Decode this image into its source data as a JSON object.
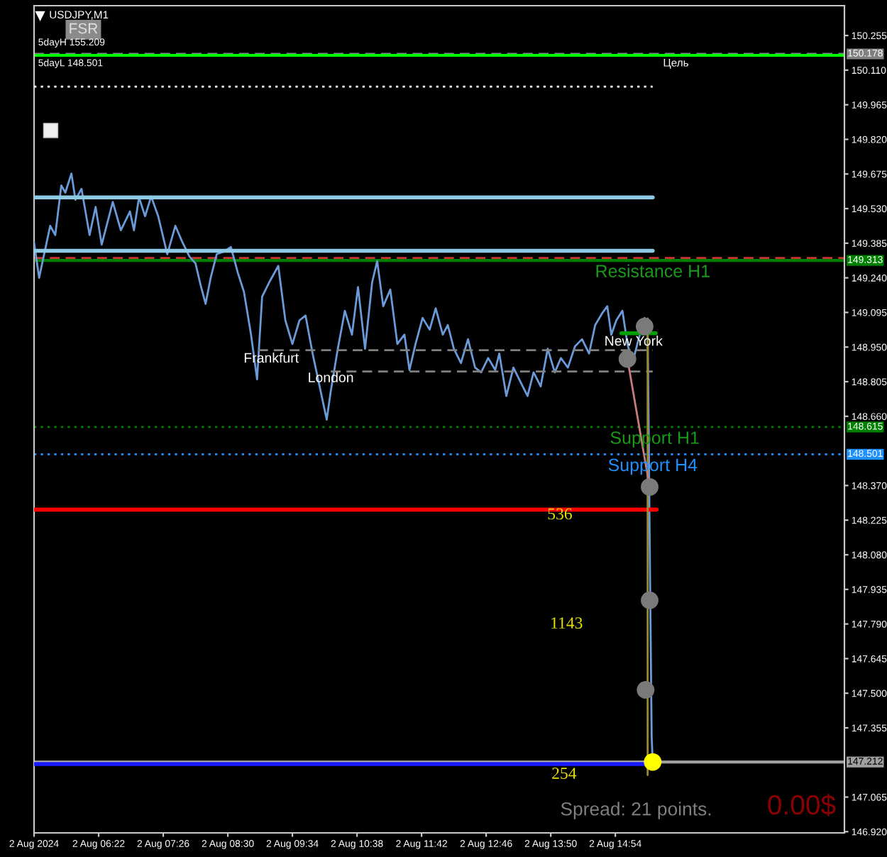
{
  "chart_data": {
    "type": "line",
    "title": "USDJPY,M1",
    "xlim": [
      "2024-08-02T05:18",
      "2024-08-02T18:41"
    ],
    "xticks": [
      {
        "value": "2024-08-02T05:18",
        "label": "2 Aug 2024"
      },
      {
        "value": "2024-08-02T06:22",
        "label": "2 Aug 06:22"
      },
      {
        "value": "2024-08-02T07:26",
        "label": "2 Aug 07:26"
      },
      {
        "value": "2024-08-02T08:30",
        "label": "2 Aug 08:30"
      },
      {
        "value": "2024-08-02T09:34",
        "label": "2 Aug 09:34"
      },
      {
        "value": "2024-08-02T10:38",
        "label": "2 Aug 10:38"
      },
      {
        "value": "2024-08-02T11:42",
        "label": "2 Aug 11:42"
      },
      {
        "value": "2024-08-02T12:46",
        "label": "2 Aug 12:46"
      },
      {
        "value": "2024-08-02T13:50",
        "label": "2 Aug 13:50"
      },
      {
        "value": "2024-08-02T14:54",
        "label": "2 Aug 14:54"
      }
    ],
    "ylim": [
      146.915,
      150.38
    ],
    "yticks": [
      150.255,
      {
        "value": 150.11,
        "label": "150.110"
      },
      149.965,
      {
        "value": 149.82,
        "label": "149.820"
      },
      149.675,
      {
        "value": 149.53,
        "label": "149.530"
      },
      149.385,
      {
        "value": 149.24,
        "label": "149.240"
      },
      149.095,
      {
        "value": 148.95,
        "label": "148.950"
      },
      148.805,
      {
        "value": 148.66,
        "label": "148.660"
      },
      {
        "value": 148.37,
        "label": "148.370"
      },
      148.225,
      {
        "value": 148.08,
        "label": "148.080"
      },
      147.935,
      {
        "value": 147.79,
        "label": "147.790"
      },
      147.645,
      {
        "value": 147.5,
        "label": "147.500"
      },
      147.355,
      147.065,
      {
        "value": 146.92,
        "label": "146.920"
      }
    ],
    "series": [
      {
        "color": "#6a9ad8",
        "x": [
          "2024-08-02T05:18",
          "2024-08-02T05:23",
          "2024-08-02T05:30",
          "2024-08-02T05:34",
          "2024-08-02T05:39",
          "2024-08-02T05:45",
          "2024-08-02T05:49",
          "2024-08-02T05:55",
          "2024-08-02T05:59",
          "2024-08-02T06:05",
          "2024-08-02T06:13",
          "2024-08-02T06:19",
          "2024-08-02T06:25",
          "2024-08-02T06:36",
          "2024-08-02T06:44",
          "2024-08-02T06:53",
          "2024-08-02T06:57",
          "2024-08-02T07:02",
          "2024-08-02T07:08",
          "2024-08-02T07:14",
          "2024-08-02T07:21",
          "2024-08-02T07:30",
          "2024-08-02T07:38",
          "2024-08-02T07:45",
          "2024-08-02T07:52",
          "2024-08-02T07:58",
          "2024-08-02T08:03",
          "2024-08-02T08:08",
          "2024-08-02T08:13",
          "2024-08-02T08:19",
          "2024-08-02T08:26",
          "2024-08-02T08:33",
          "2024-08-02T08:40",
          "2024-08-02T08:46",
          "2024-08-02T08:53",
          "2024-08-02T08:59",
          "2024-08-02T09:04",
          "2024-08-02T09:11",
          "2024-08-02T09:20",
          "2024-08-02T09:27",
          "2024-08-02T09:34",
          "2024-08-02T09:41",
          "2024-08-02T09:47",
          "2024-08-02T09:54",
          "2024-08-02T10:03",
          "2024-08-02T10:08",
          "2024-08-02T10:12",
          "2024-08-02T10:19",
          "2024-08-02T10:26",
          "2024-08-02T10:33",
          "2024-08-02T10:39",
          "2024-08-02T10:46",
          "2024-08-02T10:53",
          "2024-08-02T10:58",
          "2024-08-02T11:04",
          "2024-08-02T11:11",
          "2024-08-02T11:18",
          "2024-08-02T11:25",
          "2024-08-02T11:30",
          "2024-08-02T11:36",
          "2024-08-02T11:43",
          "2024-08-02T11:50",
          "2024-08-02T11:56",
          "2024-08-02T12:03",
          "2024-08-02T12:08",
          "2024-08-02T12:14",
          "2024-08-02T12:21",
          "2024-08-02T12:28",
          "2024-08-02T12:35",
          "2024-08-02T12:41",
          "2024-08-02T12:48",
          "2024-08-02T12:55",
          "2024-08-02T12:59",
          "2024-08-02T13:06",
          "2024-08-02T13:13",
          "2024-08-02T13:20",
          "2024-08-02T13:27",
          "2024-08-02T13:33",
          "2024-08-02T13:40",
          "2024-08-02T13:47",
          "2024-08-02T13:54",
          "2024-08-02T14:00",
          "2024-08-02T14:07",
          "2024-08-02T14:14",
          "2024-08-02T14:21",
          "2024-08-02T14:28",
          "2024-08-02T14:34",
          "2024-08-02T14:41",
          "2024-08-02T14:46",
          "2024-08-02T14:50",
          "2024-08-02T14:55",
          "2024-08-02T15:01",
          "2024-08-02T15:06",
          "2024-08-02T15:11",
          "2024-08-02T15:17",
          "2024-08-02T15:23",
          "2024-08-02T15:26",
          "2024-08-02T15:27",
          "2024-08-02T15:28",
          "2024-08-02T15:29",
          "2024-08-02T15:30",
          "2024-08-02T15:31"
        ],
        "values": [
          149.389,
          149.24,
          149.379,
          149.458,
          149.419,
          149.627,
          149.597,
          149.677,
          149.567,
          149.613,
          149.419,
          149.537,
          149.379,
          149.558,
          149.439,
          149.518,
          149.439,
          149.577,
          149.498,
          149.581,
          149.498,
          149.339,
          149.458,
          149.389,
          149.329,
          149.3,
          149.21,
          149.131,
          149.24,
          149.339,
          149.35,
          149.369,
          149.26,
          149.181,
          149.002,
          148.815,
          149.161,
          149.221,
          149.29,
          149.062,
          148.963,
          149.062,
          149.082,
          148.923,
          148.745,
          148.646,
          148.765,
          148.943,
          149.102,
          149.002,
          149.201,
          148.943,
          149.221,
          149.31,
          149.121,
          149.191,
          148.963,
          149.002,
          148.854,
          148.963,
          149.072,
          149.023,
          149.112,
          149.002,
          149.042,
          148.943,
          148.883,
          148.983,
          148.864,
          148.844,
          148.904,
          148.854,
          148.923,
          148.745,
          148.864,
          148.804,
          148.745,
          148.844,
          148.785,
          148.943,
          148.844,
          148.904,
          148.864,
          148.953,
          148.983,
          148.923,
          149.042,
          149.092,
          149.121,
          149.002,
          149.062,
          149.102,
          148.963,
          148.883,
          148.983,
          149.072,
          149.023,
          148.626,
          148.15,
          147.734,
          147.318,
          147.212
        ]
      },
      {
        "color": "#ffffff",
        "line_style": "dotted",
        "x": [
          "2024-08-02T05:18",
          "2024-08-02T15:31"
        ],
        "values": [
          150.041,
          150.041
        ]
      },
      {
        "color": "#8ecae6",
        "x": [
          "2024-08-02T05:18",
          "2024-08-02T15:31"
        ],
        "values": [
          149.577,
          149.577
        ]
      },
      {
        "color": "#8ecae6",
        "x": [
          "2024-08-02T05:18",
          "2024-08-02T15:31"
        ],
        "values": [
          149.353,
          149.353
        ]
      },
      {
        "color": "#808080",
        "line_style": "dashed",
        "x": [
          "2024-08-02T09:00",
          "2024-08-02T15:31"
        ],
        "values": [
          148.937,
          148.937
        ]
      },
      {
        "color": "#808080",
        "line_style": "dashed",
        "x": [
          "2024-08-02T10:12",
          "2024-08-02T15:31"
        ],
        "values": [
          148.848,
          148.848
        ]
      },
      {
        "color": "#ff0000",
        "x": [
          "2024-08-02T05:18",
          "2024-08-02T15:35"
        ],
        "values": [
          148.269,
          148.269
        ]
      },
      {
        "color": "#1a1aff",
        "x": [
          "2024-08-02T05:18",
          "2024-08-02T15:31"
        ],
        "values": [
          147.203,
          147.203
        ]
      },
      {
        "color": "#00a000",
        "x": [
          "2024-08-02T15:00",
          "2024-08-02T15:34"
        ],
        "values": [
          149.008,
          149.008
        ]
      },
      {
        "color": "#9a8a30",
        "x": [
          "2024-08-02T15:26",
          "2024-08-02T15:26"
        ],
        "values": [
          149.07,
          147.157
        ]
      },
      {
        "color": "#c87c7c",
        "x": [
          "2024-08-02T15:06",
          "2024-08-02T15:28"
        ],
        "values": [
          148.9,
          148.364
        ]
      },
      {
        "type": "scatter",
        "color": "#7a7a7a",
        "marker": "circle",
        "x": [
          "2024-08-02T15:23",
          "2024-08-02T15:06",
          "2024-08-02T15:28",
          "2024-08-02T15:28",
          "2024-08-02T15:24"
        ],
        "values": [
          149.036,
          148.9,
          148.364,
          147.889,
          147.514
        ]
      },
      {
        "type": "scatter",
        "color": "#ffff00",
        "marker": "circle",
        "x": [
          "2024-08-02T15:31"
        ],
        "values": [
          147.212
        ]
      }
    ],
    "ref_lines": [
      {
        "axis": "y",
        "value": 150.178,
        "label": "150.178",
        "color": "#808080",
        "line_style": "dashed"
      },
      {
        "axis": "y",
        "value": 150.172,
        "label": null,
        "color": "#00ff00",
        "line_style": "solid"
      },
      {
        "axis": "y",
        "value": 149.323,
        "label": null,
        "color": "#cc3333",
        "line_style": "dashed"
      },
      {
        "axis": "y",
        "value": 149.313,
        "label": "149.313",
        "color": "#008000",
        "line_style": "solid"
      },
      {
        "axis": "y",
        "value": 148.615,
        "label": "148.615",
        "color": "#008000",
        "line_style": "dotted"
      },
      {
        "axis": "y",
        "value": 148.501,
        "label": "148.501",
        "color": "#1e90ff",
        "line_style": "dotted"
      },
      {
        "axis": "y",
        "value": 147.212,
        "label": "147.212",
        "color": "#a0a0a0",
        "line_style": "solid"
      }
    ],
    "annotations": [
      "FSR",
      "5dayH 155.209",
      "5dayL 148.501",
      "Spread: 21 points.",
      "0.00$",
      {
        "text": "Цель",
        "x": "2024-08-02T15:54",
        "y": 150.172
      },
      {
        "text": "Resistance H1",
        "x": "2024-08-02T15:31",
        "y": 149.313
      },
      {
        "text": "Support H1",
        "x": "2024-08-02T15:33",
        "y": 148.615
      },
      {
        "text": "Support H4",
        "x": "2024-08-02T15:31",
        "y": 148.501
      },
      {
        "text": "Frankfurt",
        "x": "2024-08-02T09:13",
        "y": 148.937
      },
      {
        "text": "London",
        "x": "2024-08-02T10:12",
        "y": 148.818
      },
      {
        "text": "New York",
        "x": "2024-08-02T15:12",
        "y": 148.971
      },
      {
        "text": "536",
        "x": "2024-08-02T13:59",
        "y": 148.245
      },
      "1143",
      "254"
    ]
  }
}
